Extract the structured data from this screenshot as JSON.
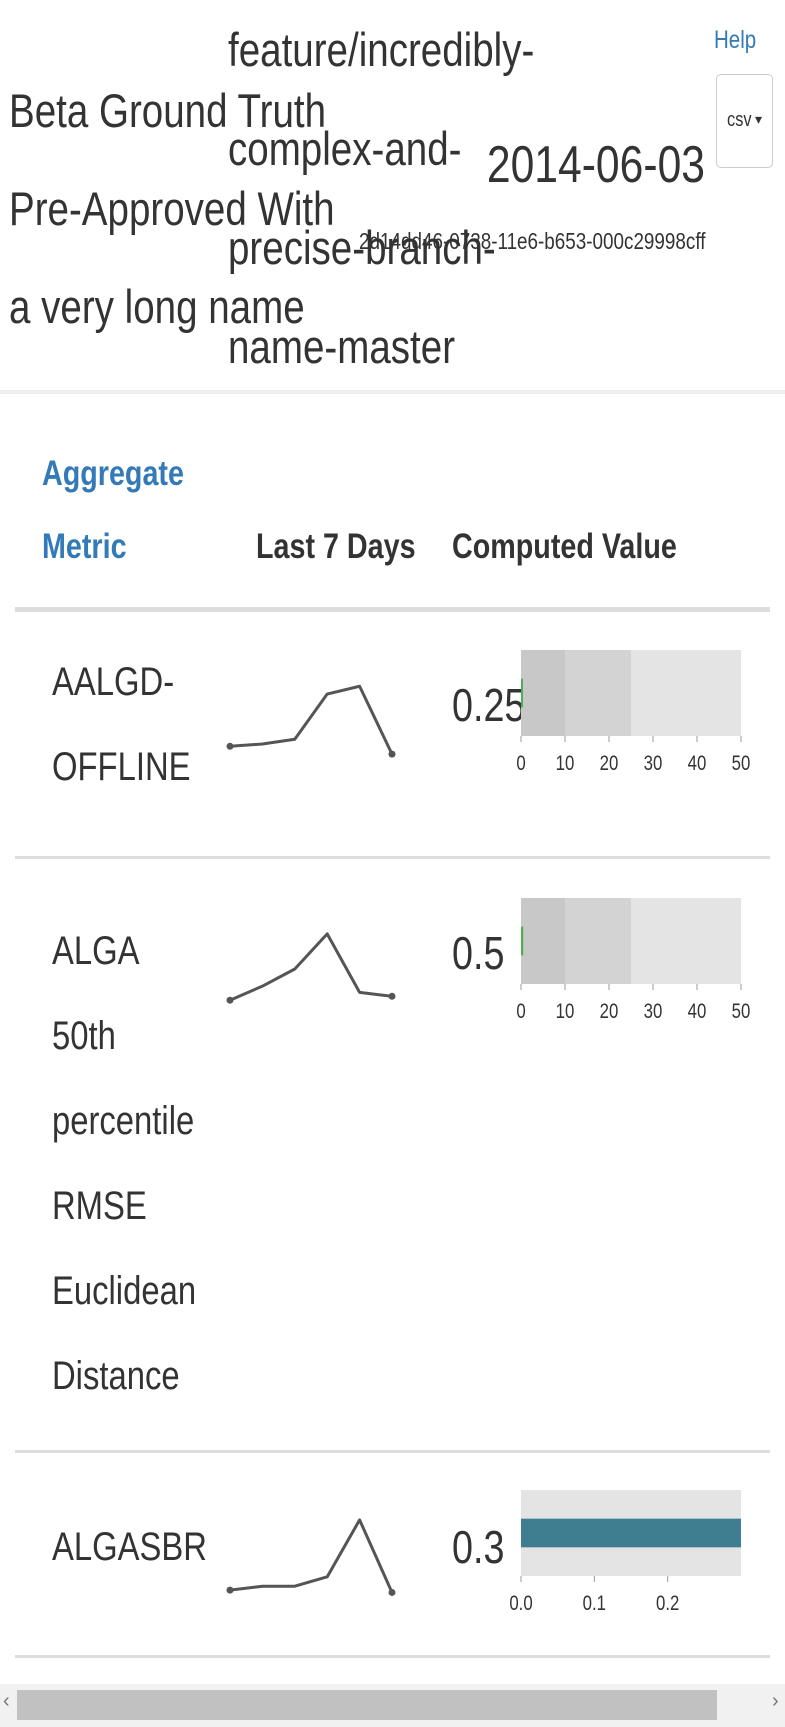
{
  "header": {
    "title_lines": [
      "Beta Ground Truth",
      "Pre-Approved With",
      "a very long name"
    ],
    "branch_lines": [
      "feature/incredibly-",
      "complex-and-",
      "precise-branch-",
      "name-master"
    ],
    "date": "2014-06-03",
    "uuid": "2d14dd46-0738-11e6-b653-000c29998cff",
    "help_label": "Help",
    "export_label": "csv",
    "export_caret": "▾"
  },
  "table": {
    "columns": {
      "metric_line1": "Aggregate",
      "metric_line2": "Metric",
      "last7": "Last 7 Days",
      "computed": "Computed Value"
    },
    "rows": [
      {
        "name_lines": [
          "AALGD-",
          "OFFLINE"
        ],
        "value": "0.25",
        "sparkline": [
          0.15,
          0.18,
          0.24,
          0.82,
          0.92,
          0.05
        ],
        "bullet": {
          "axis_ticks": [
            "0",
            "10",
            "20",
            "30",
            "40",
            "50"
          ],
          "range_max": 50,
          "ranges": [
            10,
            25,
            50
          ],
          "measure": 0.25
        }
      },
      {
        "name_lines": [
          "ALGA",
          "50th",
          "percentile",
          "RMSE",
          "Euclidean",
          "Distance"
        ],
        "value": "0.5",
        "sparkline": [
          0.1,
          0.28,
          0.5,
          0.95,
          0.2,
          0.15
        ],
        "bullet": {
          "axis_ticks": [
            "0",
            "10",
            "20",
            "30",
            "40",
            "50"
          ],
          "range_max": 50,
          "ranges": [
            10,
            25,
            50
          ],
          "measure": 0.5
        }
      },
      {
        "name_lines": [
          "ALGASBR"
        ],
        "value": "0.3",
        "sparkline": [
          0.05,
          0.1,
          0.1,
          0.22,
          0.95,
          0.02
        ],
        "bullet": {
          "axis_ticks": [
            "0.0",
            "0.1",
            "0.2"
          ],
          "range_max": 0.3,
          "ranges": [
            0.3
          ],
          "measure": 0.3
        }
      }
    ]
  },
  "colors": {
    "link": "#337ab7",
    "measure_bar": "#3f7d91",
    "measure_green": "#4caf50",
    "range_dark": "#c8c8c8",
    "range_mid": "#d3d3d3",
    "range_light": "#e4e4e4"
  }
}
